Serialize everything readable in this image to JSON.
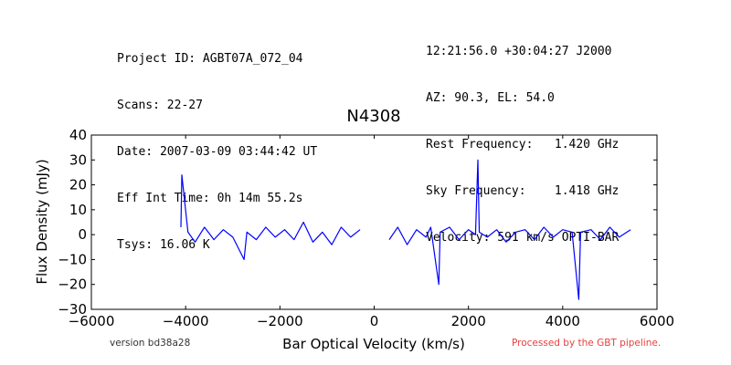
{
  "header": {
    "left": [
      "Project ID: AGBT07A_072_04",
      "Scans: 22-27",
      "Date: 2007-03-09 03:44:42 UT",
      "Eff Int Time: 0h 14m 55.2s",
      "Tsys: 16.06 K"
    ],
    "right": [
      "12:21:56.0 +30:04:27 J2000",
      "AZ: 90.3, EL: 54.0",
      "Rest Frequency:   1.420 GHz",
      "Sky Frequency:    1.418 GHz",
      "Velocity: 591 km/s OPTI-BAR"
    ]
  },
  "footer": {
    "version": "version bd38a28",
    "processed": "Processed by the GBT pipeline.",
    "processed_color": "#e8403f"
  },
  "chart_data": {
    "type": "line",
    "title": "N4308",
    "xlabel": "Bar Optical Velocity (km/s)",
    "ylabel": "Flux Density (mJy)",
    "xlim": [
      -6000,
      6000
    ],
    "ylim": [
      -30,
      40
    ],
    "xticks": [
      -6000,
      -4000,
      -2000,
      0,
      2000,
      4000,
      6000
    ],
    "yticks": [
      -30,
      -20,
      -10,
      0,
      10,
      20,
      30,
      40
    ],
    "grid": false,
    "legend": "none",
    "series": [
      {
        "color": "#0000ff",
        "segments": [
          {
            "x": [
              -4100,
              -4080,
              -3950,
              -3800,
              -3600,
              -3400,
              -3200,
              -3000,
              -2760,
              -2700,
              -2500,
              -2300,
              -2100,
              -1900,
              -1700,
              -1500,
              -1300,
              -1100,
              -900,
              -700,
              -500,
              -300
            ],
            "y": [
              3,
              24,
              1,
              -3,
              3,
              -2,
              2,
              -1,
              -10,
              1,
              -2,
              3,
              -1,
              2,
              -2,
              5,
              -3,
              1,
              -4,
              3,
              -1,
              2
            ]
          },
          {
            "x": [
              320,
              500,
              700,
              900,
              1100,
              1200,
              1370,
              1400,
              1600,
              1800,
              2000,
              2150,
              2200,
              2230,
              2400,
              2600,
              2800,
              3000,
              3200,
              3400,
              3600,
              3800,
              4000,
              4200,
              4340,
              4380,
              4600,
              4800,
              5000,
              5200,
              5440
            ],
            "y": [
              -2,
              3,
              -4,
              2,
              -1,
              3,
              -20,
              1,
              3,
              -2,
              2,
              0,
              30,
              1,
              -1,
              2,
              -3,
              1,
              2,
              -2,
              3,
              -1,
              2,
              1,
              -26,
              1,
              2,
              -2,
              3,
              -1,
              2
            ]
          }
        ]
      }
    ]
  }
}
